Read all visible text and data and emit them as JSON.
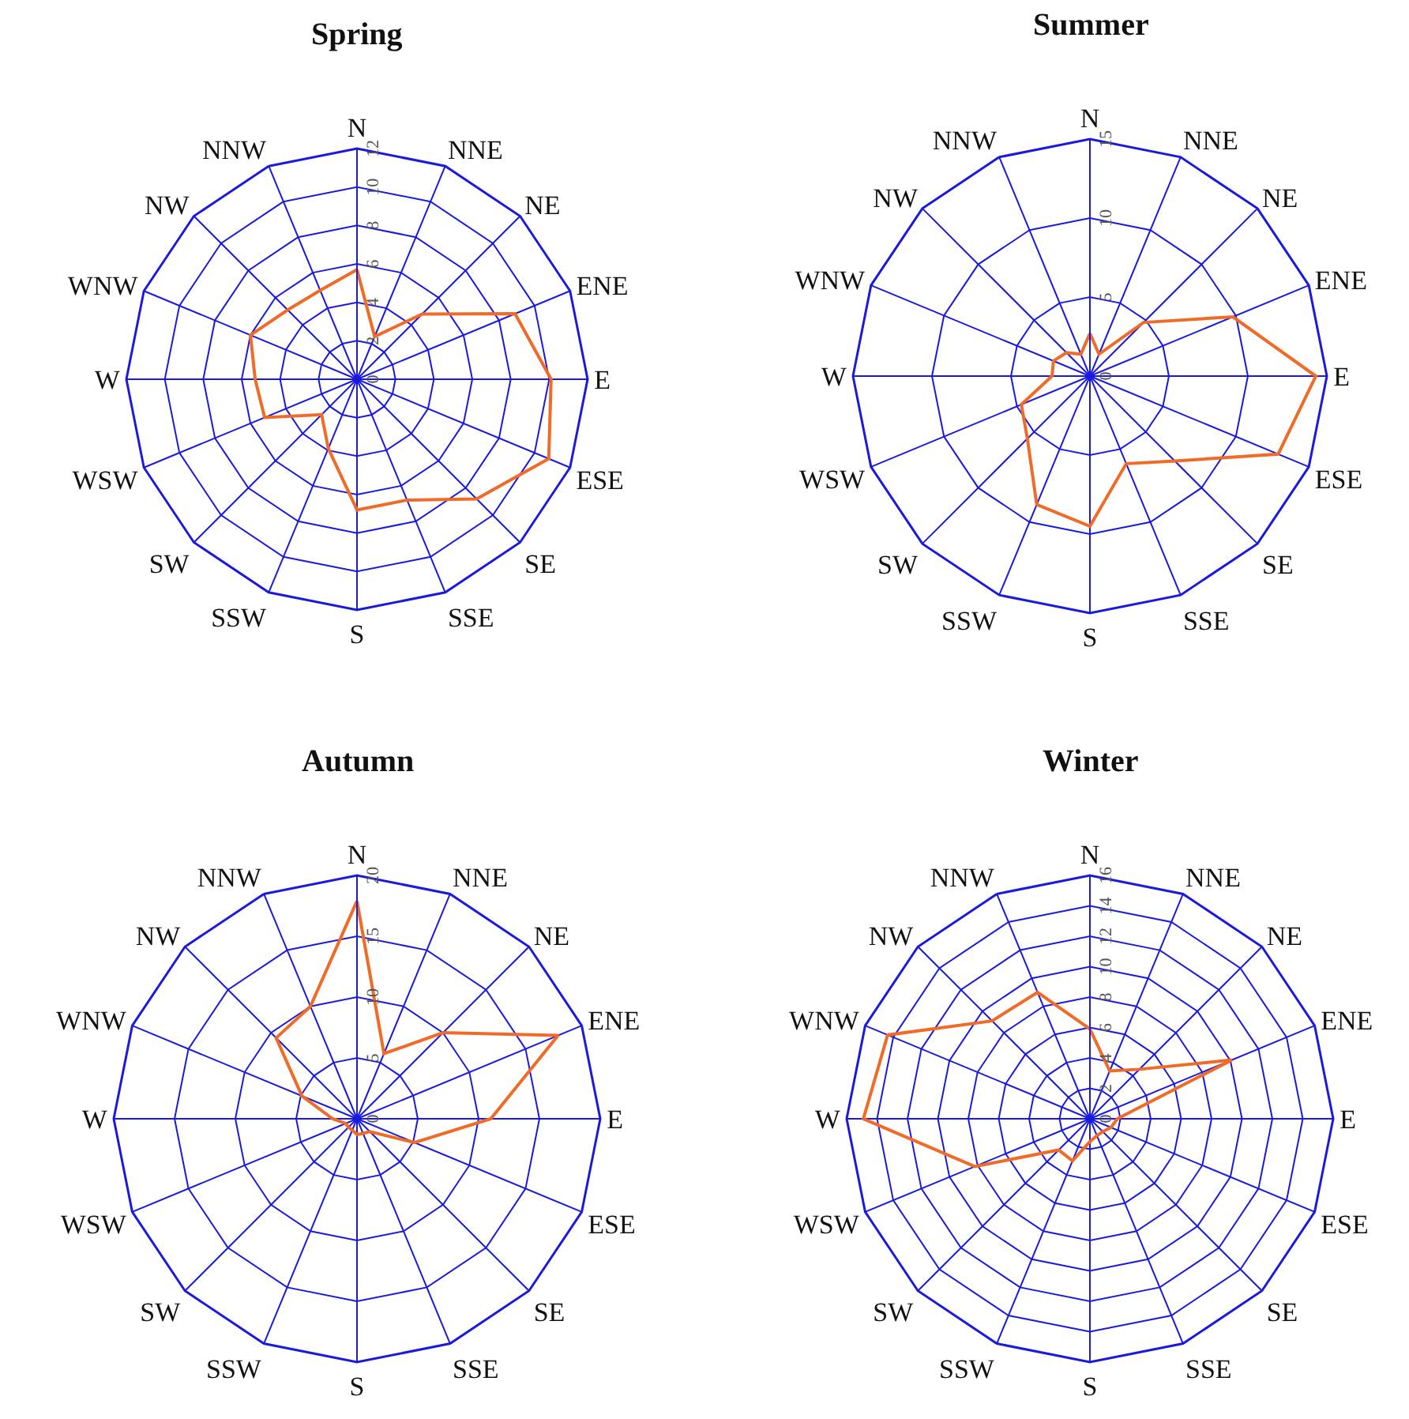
{
  "chart_data": [
    {
      "type": "radar",
      "title": "Spring",
      "categories": [
        "N",
        "NNE",
        "NE",
        "ENE",
        "E",
        "ESE",
        "SE",
        "SSE",
        "S",
        "SSW",
        "SW",
        "WSW",
        "W",
        "WNW",
        "NW",
        "NNW"
      ],
      "ylim": [
        0,
        12
      ],
      "yticks": [
        0,
        2,
        4,
        6,
        8,
        10,
        12
      ],
      "grid": true,
      "marker": "none",
      "series": [
        {
          "color": "#f06a28",
          "values": [
            5.7,
            2.4,
            4.8,
            8.9,
            10.1,
            10.8,
            8.8,
            6.8,
            6.8,
            3.9,
            2.6,
            5.2,
            5.3,
            6.0,
            5.1,
            5.0
          ]
        }
      ]
    },
    {
      "type": "radar",
      "title": "Summer",
      "categories": [
        "N",
        "NNE",
        "NE",
        "ENE",
        "E",
        "ESE",
        "SE",
        "SSE",
        "S",
        "SSW",
        "SW",
        "WSW",
        "W",
        "WNW",
        "NW",
        "NNW"
      ],
      "ylim": [
        0,
        15
      ],
      "yticks": [
        0,
        5,
        10,
        15
      ],
      "grid": true,
      "marker": "none",
      "series": [
        {
          "color": "#f06a28",
          "values": [
            2.7,
            1.5,
            4.8,
            9.8,
            14.3,
            12.9,
            7.6,
            6.0,
            9.5,
            8.8,
            5.6,
            4.7,
            2.4,
            2.5,
            2.1,
            1.5
          ]
        }
      ]
    },
    {
      "type": "radar",
      "title": "Autumn",
      "categories": [
        "N",
        "NNE",
        "NE",
        "ENE",
        "E",
        "ESE",
        "SE",
        "SSE",
        "S",
        "SSW",
        "SW",
        "WSW",
        "W",
        "WNW",
        "NW",
        "NNW"
      ],
      "ylim": [
        0,
        20
      ],
      "yticks": [
        0,
        5,
        10,
        15,
        20
      ],
      "grid": true,
      "marker": "none",
      "series": [
        {
          "color": "#f06a28",
          "values": [
            17.9,
            5.8,
            10.0,
            17.9,
            11.0,
            5.1,
            1.5,
            1.3,
            1.3,
            1.0,
            1.0,
            1.0,
            2.0,
            4.9,
            9.4,
            10.0
          ]
        }
      ]
    },
    {
      "type": "radar",
      "title": "Winter",
      "categories": [
        "N",
        "NNE",
        "NE",
        "ENE",
        "E",
        "ESE",
        "SE",
        "SSE",
        "S",
        "SSW",
        "SW",
        "WSW",
        "W",
        "WNW",
        "NW",
        "NNW"
      ],
      "ylim": [
        0,
        16
      ],
      "yticks": [
        0,
        2,
        4,
        6,
        8,
        10,
        12,
        14,
        16
      ],
      "grid": true,
      "marker": "none",
      "series": [
        {
          "color": "#f06a28",
          "values": [
            5.9,
            3.4,
            4.6,
            10.1,
            1.8,
            1.5,
            1.2,
            1.2,
            1.5,
            3.0,
            2.9,
            8.2,
            14.9,
            14.4,
            9.1,
            9.0
          ]
        }
      ]
    }
  ]
}
